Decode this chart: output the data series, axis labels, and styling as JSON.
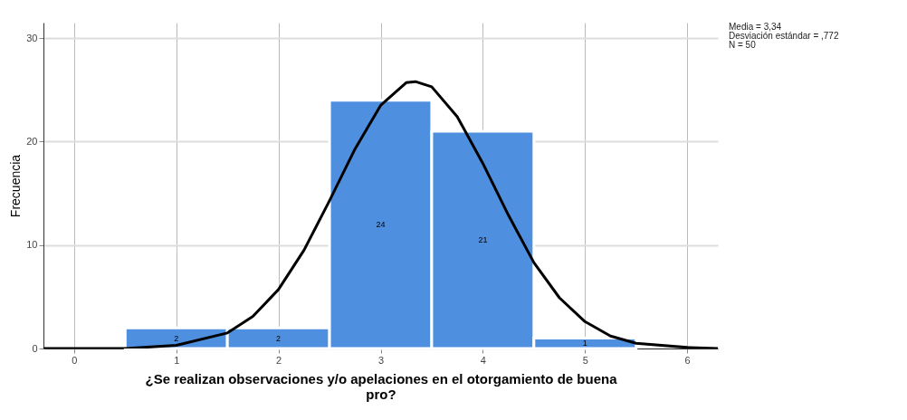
{
  "chart_data": {
    "type": "histogram",
    "xlabel": "¿Se realizan observaciones y/o apelaciones en el otorgamiento de buena pro?",
    "ylabel": "Frecuencia",
    "bins": [
      0.5,
      1.5,
      2.5,
      3.5,
      4.5,
      5.5
    ],
    "values": [
      2,
      2,
      24,
      21,
      1
    ],
    "color": "#4f8fe0",
    "value_labels": [
      "2",
      "2",
      "24",
      "21",
      "1"
    ],
    "series": [
      {
        "type": "line",
        "color": "#000000",
        "x": [
          -0.3,
          0,
          0.5,
          1,
          1.5,
          1.75,
          2,
          2.25,
          2.5,
          2.75,
          3,
          3.25,
          3.34,
          3.5,
          3.75,
          4,
          4.25,
          4.5,
          4.75,
          5,
          5.25,
          5.5,
          6,
          6.3
        ],
        "values": [
          0,
          0,
          0,
          0.3,
          1.5,
          3.1,
          5.7,
          9.5,
          14.3,
          19.3,
          23.5,
          25.7,
          25.8,
          25.3,
          22.4,
          17.9,
          12.9,
          8.3,
          4.9,
          2.6,
          1.2,
          0.5,
          0.1,
          0
        ]
      }
    ],
    "xlim": [
      -0.3,
      6.3
    ],
    "xticks": [
      0,
      1,
      2,
      3,
      4,
      5,
      6
    ],
    "ylim": [
      0,
      31.5
    ],
    "yticks": [
      0,
      10,
      20,
      30
    ],
    "grid": true,
    "annotations": [
      "Media = 3,34",
      "Desviación estándar = ,772",
      "N = 50"
    ]
  }
}
